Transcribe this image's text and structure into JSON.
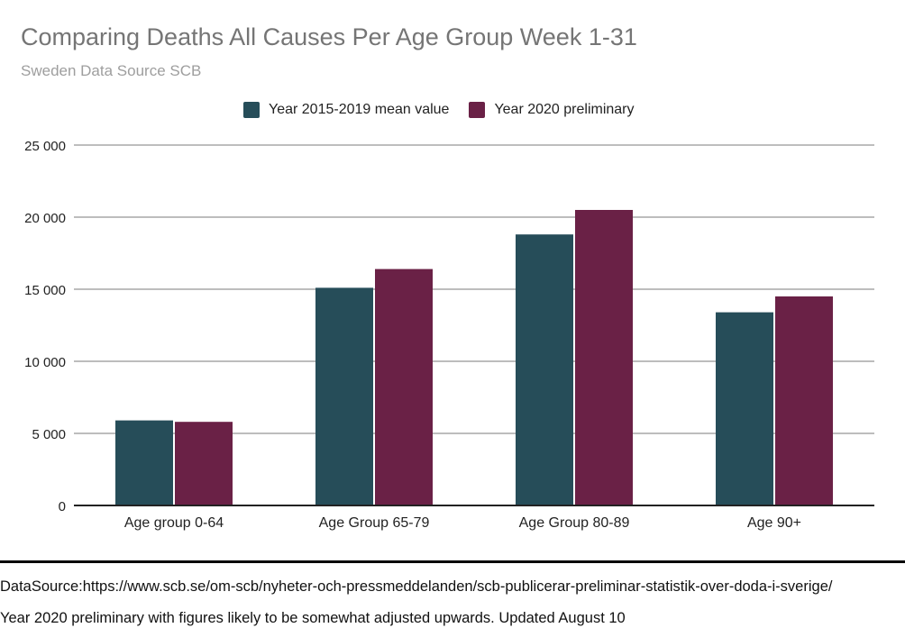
{
  "chart_data": {
    "type": "bar",
    "title": "Comparing Deaths All Causes Per Age Group Week 1-31",
    "subtitle": "Sweden Data Source SCB",
    "categories": [
      "Age group 0-64",
      "Age Group 65-79",
      "Age Group 80-89",
      "Age 90+"
    ],
    "series": [
      {
        "name": "Year 2015-2019 mean value",
        "color": "#264d59",
        "values": [
          5900,
          15100,
          18800,
          13400
        ]
      },
      {
        "name": "Year 2020 preliminary",
        "color": "#6a2146",
        "values": [
          5800,
          16400,
          20500,
          14500
        ]
      }
    ],
    "ylim": [
      0,
      25000
    ],
    "yticks": [
      0,
      5000,
      10000,
      15000,
      20000,
      25000
    ],
    "ytick_labels": [
      "0",
      "5 000",
      "10 000",
      "15 000",
      "20 000",
      "25 000"
    ],
    "grid": true,
    "legend_position": "top"
  },
  "footer": {
    "source": "DataSource:https://www.scb.se/om-scb/nyheter-och-pressmeddelanden/scb-publicerar-preliminar-statistik-over-doda-i-sverige/",
    "note": "Year 2020 preliminary with figures likely to be somewhat adjusted upwards. Updated August 10"
  }
}
